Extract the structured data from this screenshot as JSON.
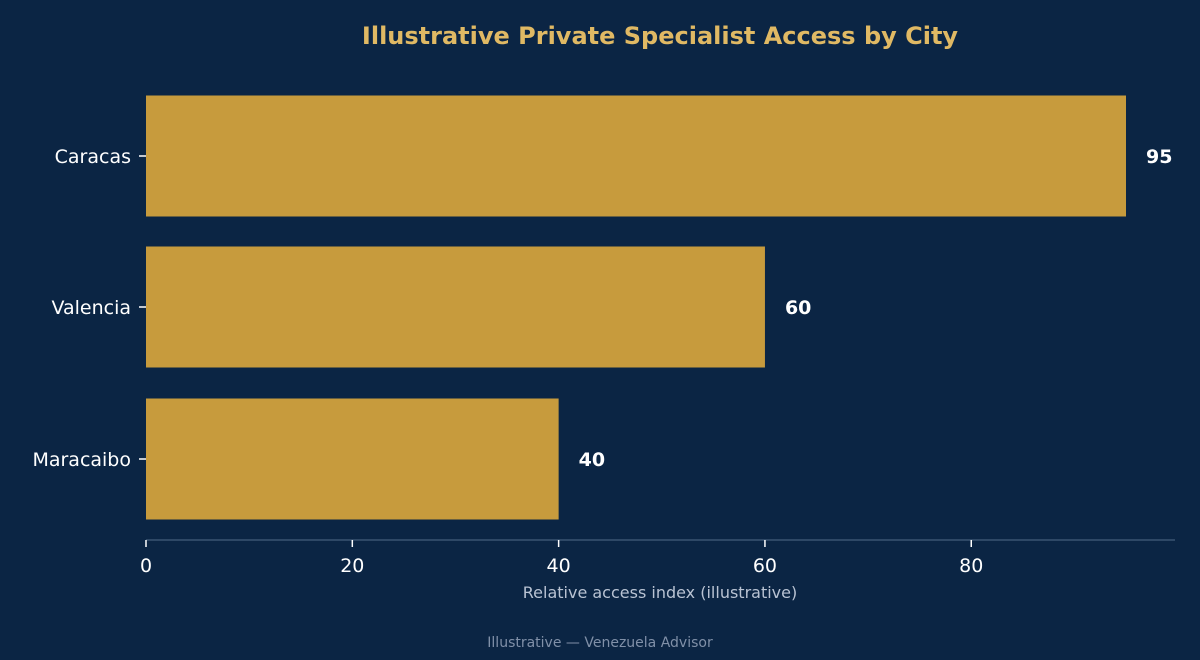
{
  "colors": {
    "background": "#0b2544",
    "bar": "#c79b3d",
    "title": "#e0b964",
    "text": "#ffffff",
    "muted": "#b9c3d3",
    "footer": "#8090a8",
    "axis": "#3b5472"
  },
  "footer": "Illustrative — Venezuela Advisor",
  "chart_data": {
    "type": "bar",
    "orientation": "horizontal",
    "title": "Illustrative Private Specialist Access by City",
    "xlabel": "Relative access index (illustrative)",
    "ylabel": "",
    "categories": [
      "Caracas",
      "Valencia",
      "Maracaibo"
    ],
    "values": [
      95,
      60,
      40
    ],
    "value_labels": [
      "95",
      "60",
      "40"
    ],
    "xlim": [
      0,
      99.75
    ],
    "xticks": [
      0,
      20,
      40,
      60,
      80
    ],
    "xtick_labels": [
      "0",
      "20",
      "40",
      "60",
      "80"
    ],
    "grid": false,
    "legend": "none"
  }
}
